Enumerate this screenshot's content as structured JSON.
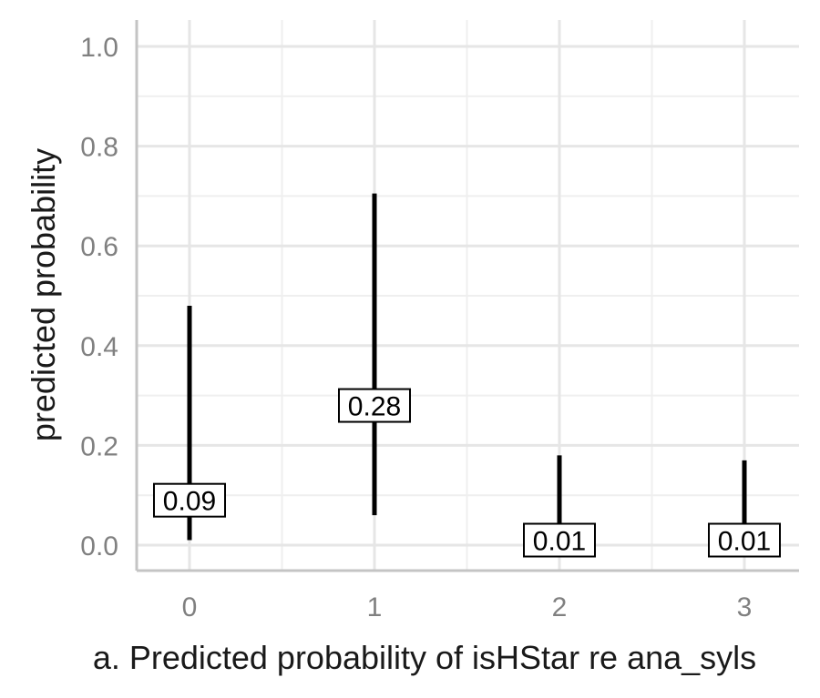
{
  "chart_data": {
    "type": "errorbar",
    "title": "",
    "xlabel": "a. Predicted probability of isHStar re ana_syls",
    "ylabel": "predicted probability",
    "categories": [
      "0",
      "1",
      "2",
      "3"
    ],
    "estimates": [
      0.09,
      0.28,
      0.01,
      0.01
    ],
    "estimate_labels": [
      "0.09",
      "0.28",
      "0.01",
      "0.01"
    ],
    "lower": [
      0.01,
      0.06,
      0.0,
      0.0
    ],
    "upper": [
      0.48,
      0.705,
      0.18,
      0.17
    ],
    "ylim": [
      0.0,
      1.0
    ],
    "yticks": [
      "0.0",
      "0.2",
      "0.4",
      "0.6",
      "0.8",
      "1.0"
    ],
    "grid": true,
    "legend": "none",
    "colors": {
      "bar": "#000000",
      "grid": "#e6e6e6",
      "tick_text": "#808080",
      "axis_line": "#c4c4c4"
    }
  }
}
